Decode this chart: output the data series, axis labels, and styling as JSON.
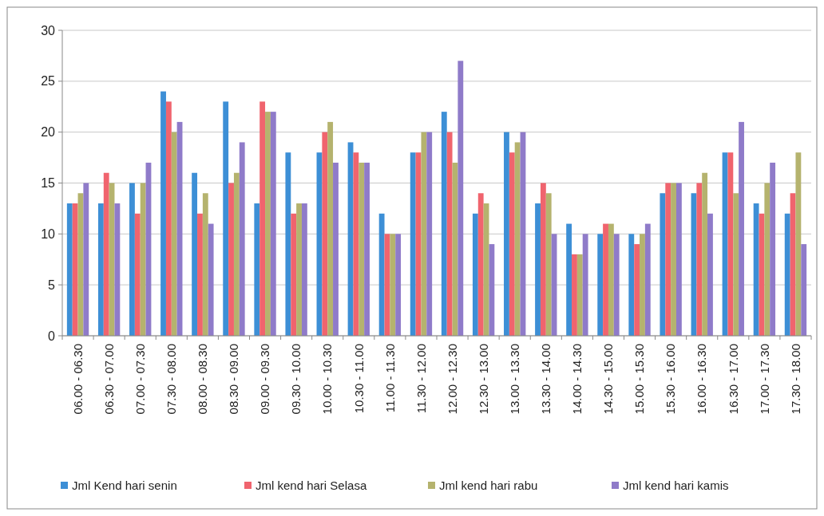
{
  "chart_data": {
    "type": "bar",
    "categories": [
      "06.00 - 06.30",
      "06.30 - 07.00",
      "07.00 - 07.30",
      "07.30 - 08.00",
      "08.00 - 08.30",
      "08.30 - 09.00",
      "09.00 - 09.30",
      "09.30 - 10.00",
      "10.00 - 10.30",
      "10.30 - 11.00",
      "11.00 - 11.30",
      "11.30 - 12.00",
      "12.00 - 12.30",
      "12.30 - 13.00",
      "13.00 - 13.30",
      "13.30 - 14.00",
      "14.00 - 14.30",
      "14.30 - 15.00",
      "15.00 - 15.30",
      "15.30 - 16.00",
      "16.00 - 16.30",
      "16.30 - 17.00",
      "17.00 - 17.30",
      "17.30 - 18.00"
    ],
    "series": [
      {
        "name": "Jml Kend hari senin",
        "color": "#3d8fd6",
        "values": [
          13,
          13,
          15,
          24,
          16,
          23,
          13,
          18,
          18,
          19,
          12,
          18,
          22,
          12,
          20,
          13,
          11,
          10,
          10,
          14,
          14,
          18,
          13,
          12
        ]
      },
      {
        "name": "Jml kend hari Selasa",
        "color": "#f0646e",
        "values": [
          13,
          16,
          12,
          23,
          12,
          15,
          23,
          12,
          20,
          18,
          10,
          18,
          20,
          14,
          18,
          15,
          8,
          11,
          9,
          15,
          15,
          18,
          12,
          14
        ]
      },
      {
        "name": "Jml kend hari rabu",
        "color": "#b5b36e",
        "values": [
          14,
          15,
          15,
          20,
          14,
          16,
          22,
          13,
          21,
          17,
          10,
          20,
          17,
          13,
          19,
          14,
          8,
          11,
          10,
          15,
          16,
          14,
          15,
          18
        ]
      },
      {
        "name": "Jml kend hari kamis",
        "color": "#8f7bc9",
        "values": [
          15,
          13,
          17,
          21,
          11,
          19,
          22,
          13,
          17,
          17,
          10,
          20,
          27,
          9,
          20,
          10,
          10,
          10,
          11,
          15,
          12,
          21,
          17,
          9
        ]
      }
    ],
    "ylim": [
      0,
      30
    ],
    "yticks": [
      0,
      5,
      10,
      15,
      20,
      25,
      30
    ],
    "grid": "y",
    "legend": "bottom"
  }
}
